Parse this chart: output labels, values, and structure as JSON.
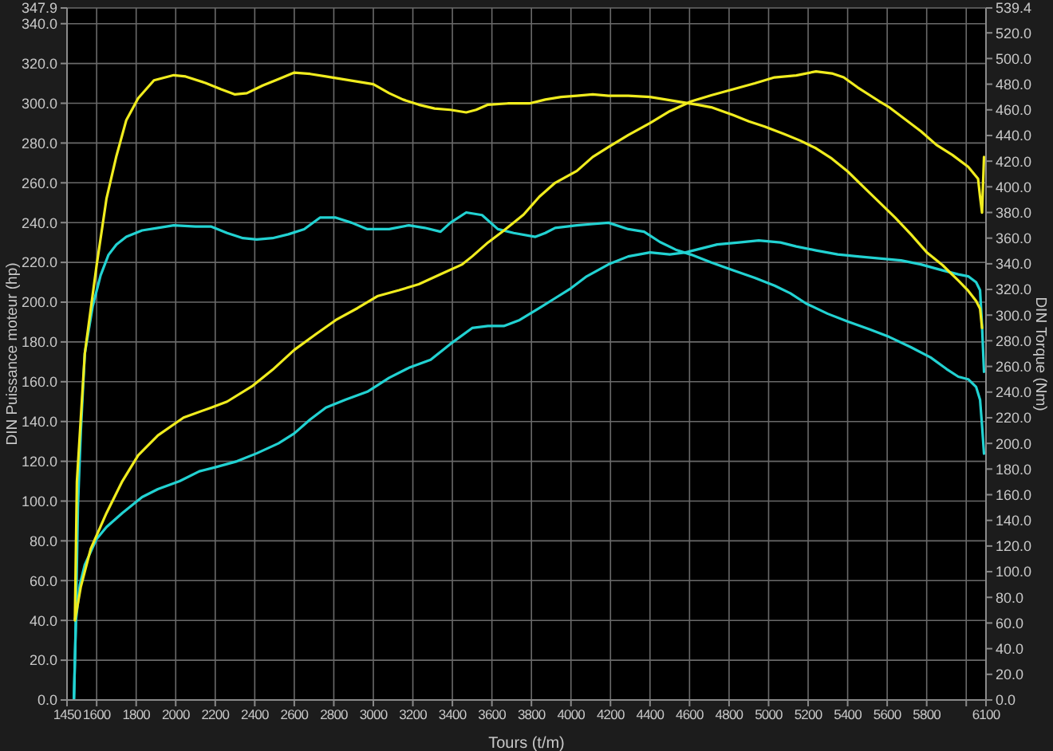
{
  "chart_data": {
    "type": "line",
    "xlabel": "Tours (t/m)",
    "ylabel": "DIN Puissance moteur (hp)",
    "y2label": "DIN Torque (Nm)",
    "xlim": [
      1450,
      6100
    ],
    "xticks": [
      1450,
      1600,
      1800,
      2000,
      2200,
      2400,
      2600,
      2800,
      3000,
      3200,
      3400,
      3600,
      3800,
      4000,
      4200,
      4400,
      4600,
      4800,
      5000,
      5200,
      5400,
      5600,
      5800,
      {
        "value": 6000,
        "label": null
      },
      6100
    ],
    "ylim": [
      0,
      347.9
    ],
    "yticks": [
      {
        "value": 0,
        "label": "0.0"
      },
      {
        "value": 20,
        "label": "20.0"
      },
      {
        "value": 40,
        "label": "40.0"
      },
      {
        "value": 60,
        "label": "60.0"
      },
      {
        "value": 80,
        "label": "80.0"
      },
      {
        "value": 100,
        "label": "100.0"
      },
      {
        "value": 120,
        "label": "120.0"
      },
      {
        "value": 140,
        "label": "140.0"
      },
      {
        "value": 160,
        "label": "160.0"
      },
      {
        "value": 180,
        "label": "180.0"
      },
      {
        "value": 200,
        "label": "200.0"
      },
      {
        "value": 220,
        "label": "220.0"
      },
      {
        "value": 240,
        "label": "240.0"
      },
      {
        "value": 260,
        "label": "260.0"
      },
      {
        "value": 280,
        "label": "280.0"
      },
      {
        "value": 300,
        "label": "300.0"
      },
      {
        "value": 320,
        "label": "320.0"
      },
      {
        "value": 340,
        "label": "340.0"
      },
      {
        "value": 347.9,
        "label": "347.9"
      }
    ],
    "y2lim": [
      0,
      539.4
    ],
    "y2ticks": [
      {
        "value": 0,
        "label": "0.0"
      },
      {
        "value": 20,
        "label": "20.0"
      },
      {
        "value": 40,
        "label": "40.0"
      },
      {
        "value": 60,
        "label": "60.0"
      },
      {
        "value": 80,
        "label": "80.0"
      },
      {
        "value": 100,
        "label": "100.0"
      },
      {
        "value": 120,
        "label": "120.0"
      },
      {
        "value": 140,
        "label": "140.0"
      },
      {
        "value": 160,
        "label": "160.0"
      },
      {
        "value": 180,
        "label": "180.0"
      },
      {
        "value": 200,
        "label": "200.0"
      },
      {
        "value": 220,
        "label": "220.0"
      },
      {
        "value": 240,
        "label": "240.0"
      },
      {
        "value": 260,
        "label": "260.0"
      },
      {
        "value": 280,
        "label": "280.0"
      },
      {
        "value": 300,
        "label": "300.0"
      },
      {
        "value": 320,
        "label": "320.0"
      },
      {
        "value": 340,
        "label": "340.0"
      },
      {
        "value": 360,
        "label": "360.0"
      },
      {
        "value": 380,
        "label": "380.0"
      },
      {
        "value": 400,
        "label": "400.0"
      },
      {
        "value": 420,
        "label": "420.0"
      },
      {
        "value": 440,
        "label": "440.0"
      },
      {
        "value": 460,
        "label": "460.0"
      },
      {
        "value": 480,
        "label": "480.0"
      },
      {
        "value": 500,
        "label": "500.0"
      },
      {
        "value": 520,
        "label": "520.0"
      },
      {
        "value": 539.4,
        "label": "539.4"
      }
    ],
    "grid": true,
    "line_style": "solid",
    "series": [
      {
        "color": "#22d2d2",
        "axis": "y2",
        "x": [
          1485,
          1495,
          1505,
          1520,
          1540,
          1580,
          1620,
          1660,
          1700,
          1750,
          1830,
          1910,
          1990,
          2100,
          2180,
          2260,
          2340,
          2410,
          2490,
          2570,
          2650,
          2730,
          2810,
          2890,
          2970,
          3080,
          3180,
          3260,
          3340,
          3390,
          3470,
          3550,
          3630,
          3710,
          3820,
          3870,
          3920,
          4030,
          4110,
          4190,
          4290,
          4370,
          4450,
          4530,
          4610,
          4710,
          4820,
          4930,
          5030,
          5110,
          5190,
          5300,
          5400,
          5510,
          5610,
          5720,
          5820,
          5900,
          5960,
          6010,
          6050,
          6070,
          6080,
          6090
        ],
        "values": [
          0,
          63,
          150,
          210,
          270,
          307,
          331,
          347,
          355,
          361,
          366,
          368,
          370,
          369,
          369,
          364,
          360,
          359,
          360,
          363,
          367,
          376,
          376,
          372,
          367,
          367,
          370,
          368,
          365,
          372,
          380,
          378,
          367,
          364,
          361,
          364,
          368,
          370,
          371,
          372,
          367,
          365,
          357,
          351,
          347,
          341,
          335,
          329,
          323,
          317,
          309,
          301,
          295,
          289,
          283,
          275,
          267,
          258,
          252,
          250,
          244,
          234,
          214,
          192
        ]
      },
      {
        "color": "#22d2d2",
        "x": [
          1485,
          1495,
          1515,
          1540,
          1600,
          1650,
          1730,
          1830,
          1910,
          2020,
          2120,
          2200,
          2310,
          2410,
          2520,
          2600,
          2680,
          2760,
          2860,
          2970,
          3080,
          3180,
          3290,
          3390,
          3500,
          3580,
          3660,
          3740,
          3840,
          3920,
          4000,
          4080,
          4190,
          4290,
          4400,
          4500,
          4580,
          4660,
          4740,
          4850,
          4950,
          5060,
          5140,
          5240,
          5350,
          5450,
          5560,
          5670,
          5770,
          5880,
          5960,
          6010,
          6050,
          6070,
          6080,
          6090
        ],
        "values": [
          0,
          40,
          58,
          68,
          81,
          87,
          94,
          102,
          106,
          110,
          115,
          117,
          120,
          124,
          129,
          134,
          141,
          147,
          151,
          155,
          162,
          167,
          171,
          179,
          187,
          188,
          188,
          191,
          197,
          202,
          207,
          213,
          219,
          223,
          225,
          224,
          225,
          227,
          229,
          230,
          231,
          230,
          228,
          226,
          224,
          223,
          222,
          221,
          219,
          216,
          214,
          213,
          210,
          206,
          188,
          165
        ]
      },
      {
        "color": "#f0ec1e",
        "axis": "y2",
        "x": [
          1490,
          1500,
          1540,
          1600,
          1650,
          1700,
          1750,
          1810,
          1890,
          1990,
          2050,
          2150,
          2230,
          2300,
          2360,
          2440,
          2520,
          2600,
          2680,
          2760,
          2840,
          2920,
          3000,
          3080,
          3150,
          3230,
          3310,
          3390,
          3470,
          3520,
          3580,
          3680,
          3790,
          3870,
          3950,
          4030,
          4110,
          4190,
          4290,
          4400,
          4480,
          4560,
          4640,
          4710,
          4820,
          4900,
          4980,
          5080,
          5160,
          5240,
          5320,
          5400,
          5480,
          5560,
          5640,
          5720,
          5800,
          5880,
          5960,
          6010,
          6050,
          6070,
          6080
        ],
        "values": [
          63,
          170,
          270,
          339,
          391,
          424,
          452,
          469,
          483,
          487,
          486,
          481,
          476,
          472,
          473,
          479,
          484,
          489,
          488,
          486,
          484,
          482,
          480,
          473,
          468,
          464,
          461,
          460,
          458,
          460,
          464,
          465,
          465,
          468,
          470,
          471,
          472,
          471,
          471,
          470,
          468,
          466,
          464,
          462,
          456,
          451,
          447,
          441,
          436,
          430,
          422,
          412,
          400,
          388,
          376,
          363,
          349,
          339,
          327,
          319,
          311,
          305,
          290
        ]
      },
      {
        "color": "#f0ec1e",
        "x": [
          1490,
          1520,
          1570,
          1650,
          1730,
          1810,
          1910,
          2040,
          2180,
          2260,
          2390,
          2490,
          2600,
          2710,
          2810,
          2920,
          3020,
          3130,
          3230,
          3340,
          3450,
          3500,
          3580,
          3660,
          3760,
          3840,
          3920,
          4030,
          4110,
          4190,
          4290,
          4400,
          4500,
          4610,
          4710,
          4820,
          4930,
          5030,
          5140,
          5240,
          5320,
          5380,
          5450,
          5560,
          5610,
          5690,
          5770,
          5850,
          5930,
          6010,
          6060,
          6070,
          6080,
          6090
        ],
        "values": [
          40,
          57,
          76,
          94,
          110,
          123,
          133,
          142,
          147,
          150,
          158,
          166,
          176,
          184,
          191,
          197,
          203,
          206,
          209,
          214,
          219,
          223,
          230,
          236,
          244,
          253,
          260,
          266,
          273,
          278,
          284,
          290,
          296,
          301,
          304,
          307,
          310,
          313,
          314,
          316,
          315,
          313,
          308,
          301,
          298,
          292,
          286,
          279,
          274,
          268,
          262,
          253,
          245,
          273
        ]
      }
    ]
  }
}
